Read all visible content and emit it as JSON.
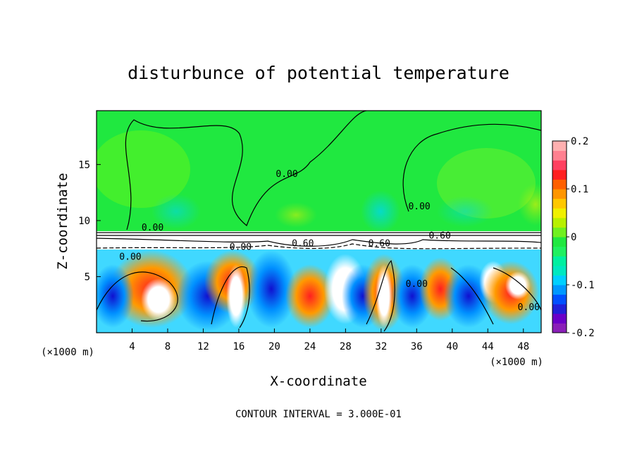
{
  "chart_data": {
    "type": "heatmap",
    "title": "disturbunce of potential temperature",
    "xlabel": "X-coordinate",
    "ylabel": "Z-coordinate",
    "x_unit": "(×1000 m)",
    "y_unit": "(×1000 m)",
    "footer": "CONTOUR INTERVAL = 3.000E-01",
    "xlim": [
      0,
      50
    ],
    "ylim": [
      0,
      19.8
    ],
    "x_ticks": [
      4,
      8,
      12,
      16,
      20,
      24,
      28,
      32,
      36,
      40,
      44,
      48
    ],
    "y_ticks": [
      5,
      10,
      15
    ],
    "colorbar": {
      "vmin": -0.2,
      "vmax": 0.2,
      "ticks": [
        -0.2,
        -0.1,
        0,
        0.1,
        0.2
      ],
      "tick_labels": [
        "-0.2",
        "-0.1",
        "0",
        "0.1",
        "0.2"
      ],
      "colors": [
        "#8a1fb8",
        "#6a00c8",
        "#2020d8",
        "#0050ff",
        "#0098ff",
        "#00d0ff",
        "#00e8c0",
        "#00f0a0",
        "#20f060",
        "#20e840",
        "#70f020",
        "#b8f000",
        "#f0f000",
        "#ffc800",
        "#ff9600",
        "#ff6000",
        "#ff2020",
        "#ff4060",
        "#ff8090",
        "#ffb0b0"
      ]
    },
    "contour_labels": [
      {
        "text": "0.00",
        "x": 6.3,
        "z": 9.1
      },
      {
        "text": "0.00",
        "x": 16.2,
        "z": 7.4
      },
      {
        "text": "0.00",
        "x": 3.8,
        "z": 6.5
      },
      {
        "text": "0.60",
        "x": 23.2,
        "z": 7.7
      },
      {
        "text": "0.60",
        "x": 31.8,
        "z": 7.7
      },
      {
        "text": "0.60",
        "x": 38.6,
        "z": 8.4
      },
      {
        "text": "0.00",
        "x": 21.4,
        "z": 13.9
      },
      {
        "text": "0.00",
        "x": 36.3,
        "z": 11.0
      },
      {
        "text": "0.00",
        "x": 36.0,
        "z": 4.1
      },
      {
        "text": "0.00",
        "x": 48.6,
        "z": 2.0
      }
    ]
  }
}
